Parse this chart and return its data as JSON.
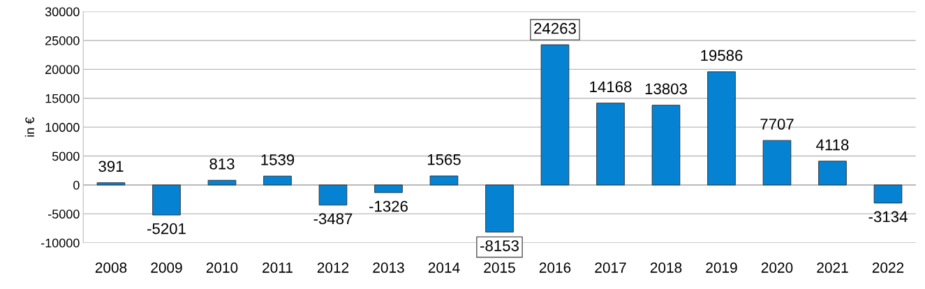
{
  "chart_data": {
    "type": "bar",
    "ylabel": "in €",
    "categories": [
      "2008",
      "2009",
      "2010",
      "2011",
      "2012",
      "2013",
      "2014",
      "2015",
      "2016",
      "2017",
      "2018",
      "2019",
      "2020",
      "2021",
      "2022"
    ],
    "values": [
      391,
      -5201,
      813,
      1539,
      -3487,
      -1326,
      1565,
      -8153,
      24263,
      14168,
      13803,
      19586,
      7707,
      4118,
      -3134
    ],
    "color": "#0582d2",
    "ylim": [
      -10000,
      30000
    ],
    "yticks": [
      -10000,
      -5000,
      0,
      5000,
      10000,
      15000,
      20000,
      25000,
      30000
    ],
    "grid": "y",
    "data_labels": true
  }
}
